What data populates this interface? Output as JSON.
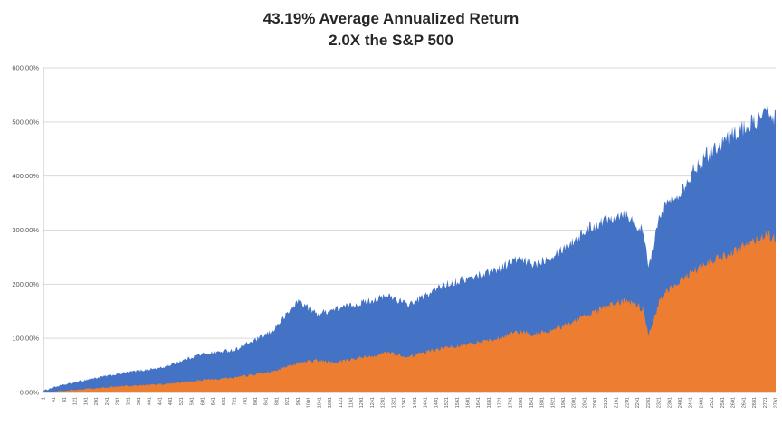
{
  "chart_data": {
    "type": "area",
    "title": "43.19% Average Annualized Return",
    "subtitle": "2.0X the S&P 500",
    "xlabel": "",
    "ylabel": "",
    "ylim": [
      0,
      600
    ],
    "x_range": [
      1,
      2761
    ],
    "grid": true,
    "legend": "none",
    "y_ticks": [
      "0.00%",
      "100.00%",
      "200.00%",
      "300.00%",
      "400.00%",
      "500.00%",
      "600.00%"
    ],
    "x_ticks": [
      1,
      41,
      81,
      121,
      161,
      201,
      241,
      281,
      321,
      361,
      401,
      441,
      481,
      521,
      561,
      601,
      641,
      681,
      721,
      761,
      801,
      841,
      881,
      921,
      961,
      1001,
      1041,
      1081,
      1121,
      1161,
      1201,
      1241,
      1281,
      1321,
      1361,
      1401,
      1441,
      1481,
      1521,
      1561,
      1601,
      1641,
      1681,
      1721,
      1761,
      1801,
      1841,
      1881,
      1921,
      1961,
      2001,
      2041,
      2081,
      2121,
      2161,
      2201,
      2241,
      2281,
      2321,
      2361,
      2401,
      2441,
      2481,
      2521,
      2561,
      2601,
      2641,
      2681,
      2721,
      2761
    ],
    "colors": {
      "blue": "#4472C4",
      "orange": "#ED7D31",
      "grid": "#D9D9D9",
      "axis": "#BFBFBF",
      "tick_text": "#595959",
      "title_text": "#262626"
    },
    "series": [
      {
        "name": "series-blue",
        "color": "#4472C4",
        "x": [
          1,
          41,
          178,
          314,
          451,
          588,
          724,
          861,
          963,
          1032,
          1100,
          1203,
          1305,
          1373,
          1442,
          1510,
          1613,
          1715,
          1783,
          1852,
          1920,
          1988,
          2057,
          2125,
          2194,
          2262,
          2282,
          2330,
          2398,
          2467,
          2535,
          2603,
          2672,
          2723,
          2761
        ],
        "values": [
          3,
          10,
          25,
          37,
          46,
          70,
          79,
          112,
          170,
          145,
          154,
          166,
          179,
          162,
          179,
          199,
          212,
          229,
          246,
          237,
          254,
          276,
          304,
          321,
          333,
          296,
          230,
          338,
          371,
          421,
          455,
          480,
          497,
          517,
          510
        ]
      },
      {
        "name": "series-orange",
        "color": "#ED7D31",
        "x": [
          1,
          41,
          178,
          314,
          451,
          588,
          724,
          861,
          963,
          1032,
          1100,
          1203,
          1305,
          1373,
          1442,
          1510,
          1613,
          1715,
          1783,
          1852,
          1920,
          1988,
          2057,
          2125,
          2194,
          2262,
          2282,
          2330,
          2398,
          2467,
          2535,
          2603,
          2672,
          2723,
          2761
        ],
        "values": [
          0,
          2,
          7,
          12,
          15,
          22,
          28,
          38,
          54,
          59,
          55,
          65,
          74,
          65,
          75,
          82,
          90,
          100,
          112,
          107,
          115,
          129,
          145,
          159,
          170,
          154,
          105,
          179,
          204,
          229,
          246,
          259,
          276,
          293,
          283
        ]
      }
    ]
  }
}
